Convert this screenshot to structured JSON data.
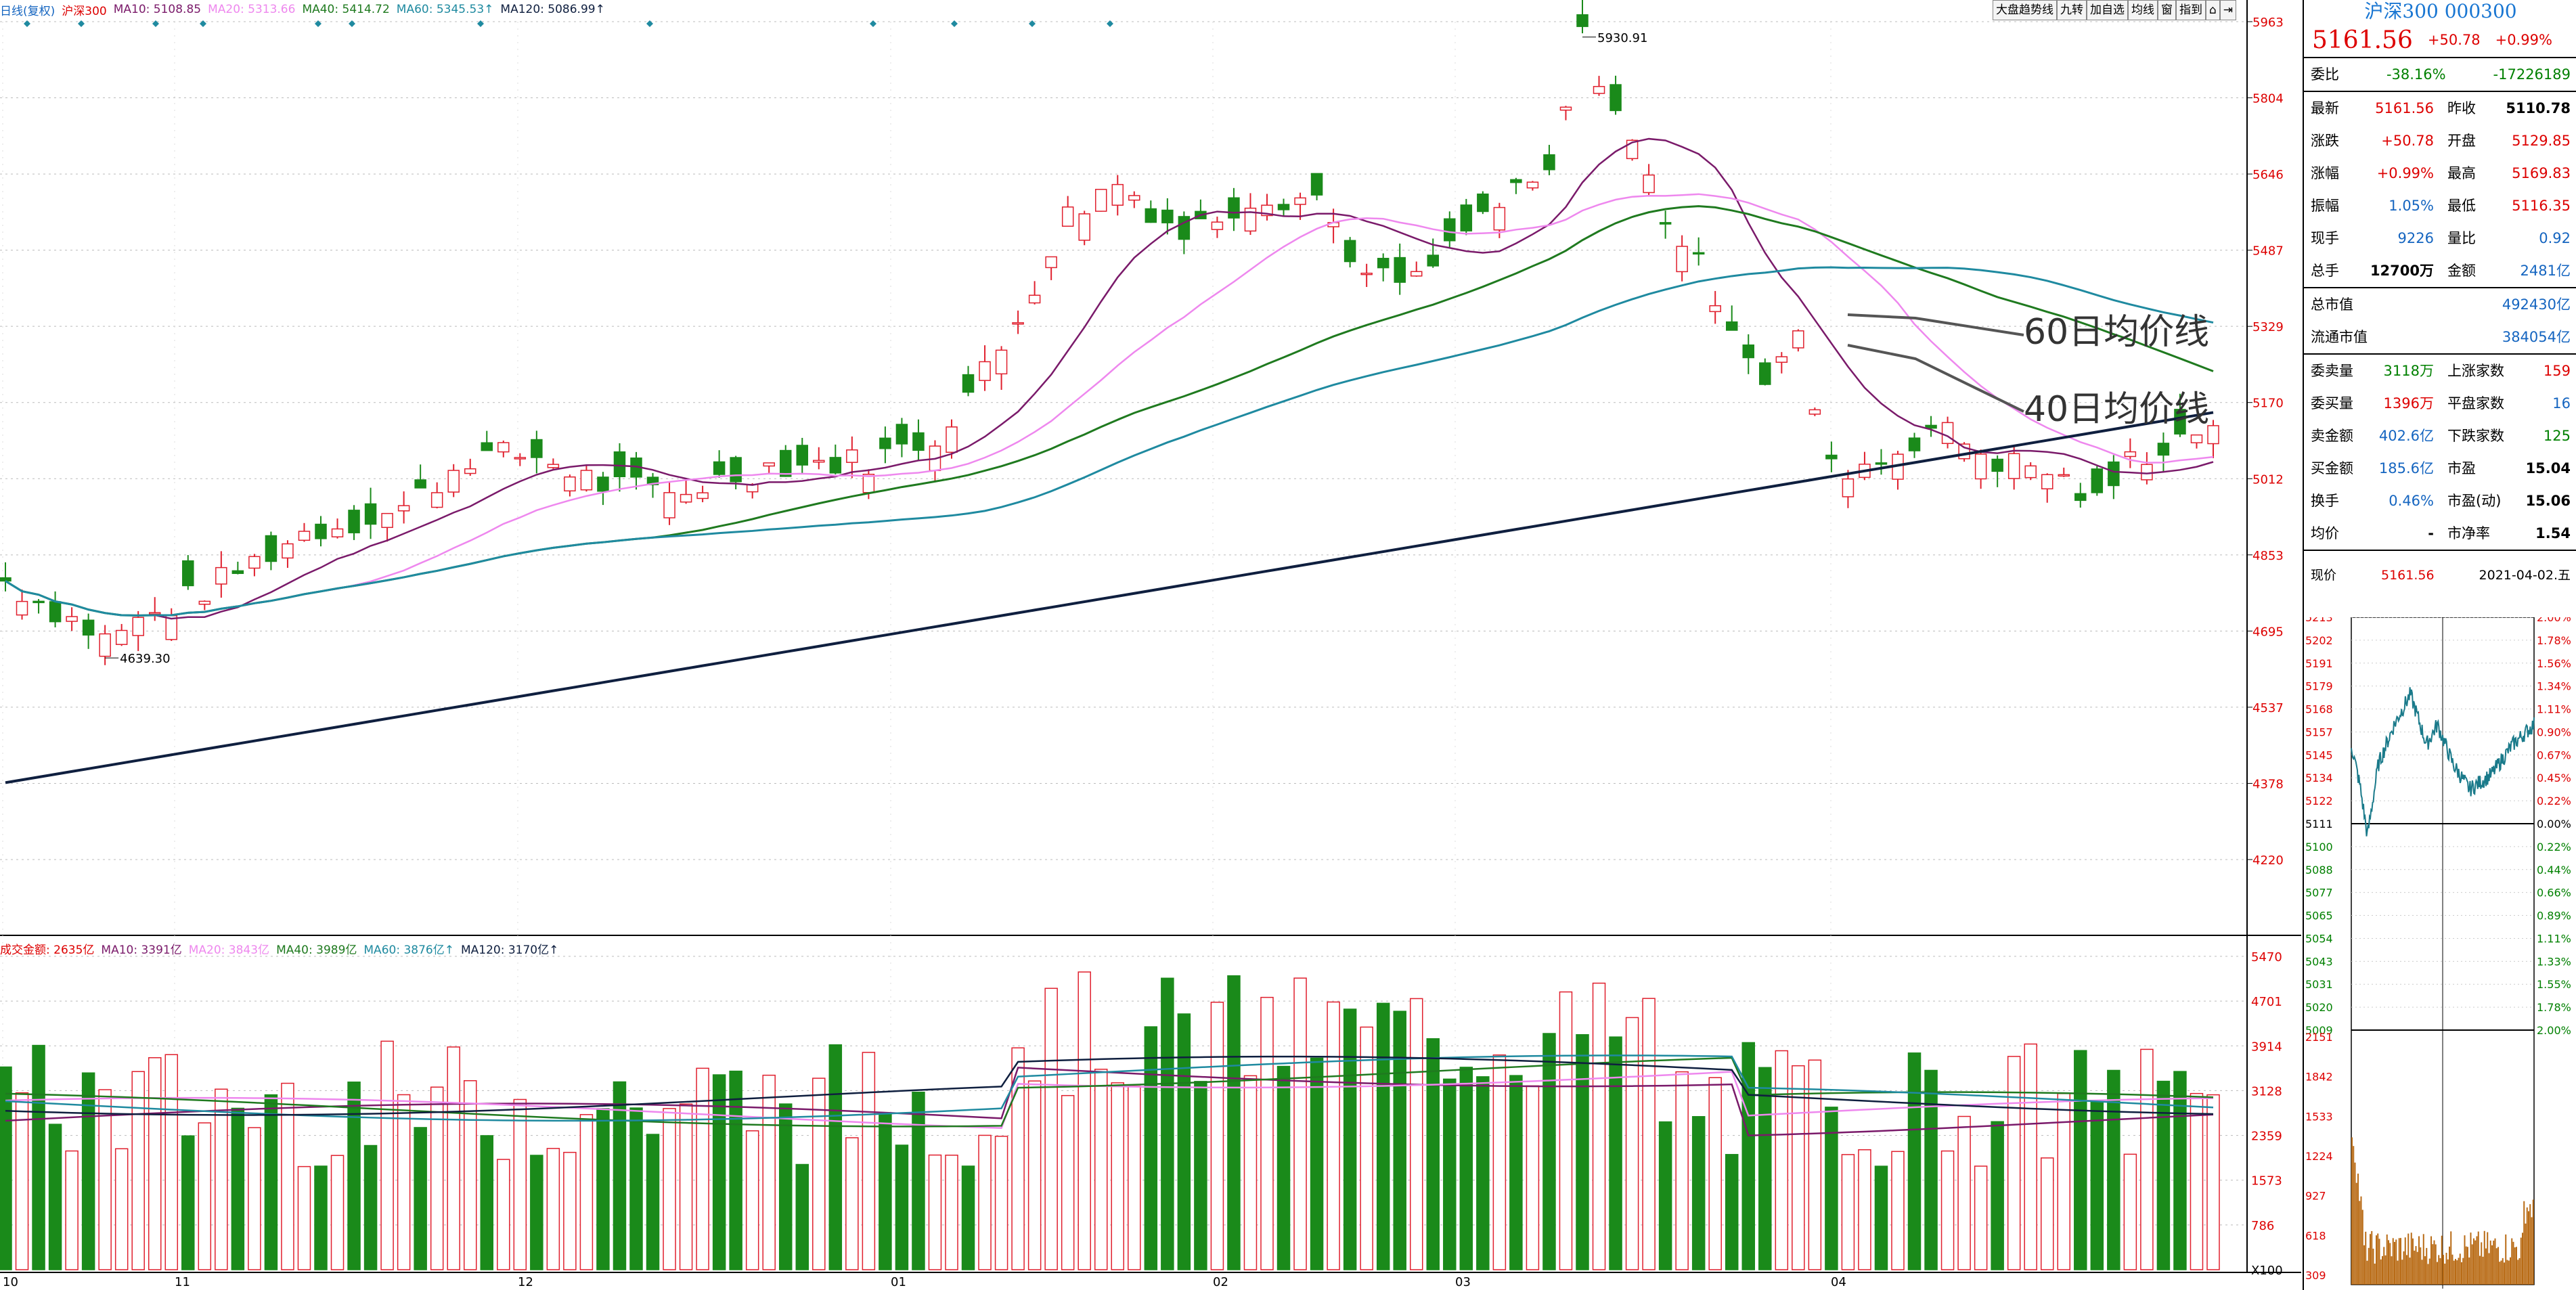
{
  "legend": {
    "chart_name": "日线(复权)",
    "symbol": "沪深300",
    "ma10": "MA10: 5108.85",
    "ma20": "MA20: 5313.66",
    "ma40": "MA40: 5414.72",
    "ma60": "MA60: 5345.53↑",
    "ma120": "MA120: 5086.99↑"
  },
  "vol_legend": {
    "amount": "成交金额: 2635亿",
    "ma10": "MA10: 3391亿",
    "ma20": "MA20: 3843亿",
    "ma40": "MA40: 3989亿",
    "ma60": "MA60: 3876亿↑",
    "ma120": "MA120: 3170亿↑"
  },
  "toolbar": [
    "大盘趋势线",
    "九转",
    "加自选",
    "均线",
    "窗",
    "指到",
    "⌂",
    "⇥"
  ],
  "price_axis": [
    "5963",
    "5804",
    "5646",
    "5487",
    "5329",
    "5170",
    "5012",
    "4853",
    "4695",
    "4537",
    "4378",
    "4220"
  ],
  "vol_axis": [
    "5470",
    "4701",
    "3914",
    "3128",
    "2359",
    "1573",
    "786",
    "X100"
  ],
  "x_axis": [
    "10",
    "11",
    "12",
    "01",
    "02",
    "03",
    "04"
  ],
  "annotations": {
    "high": "5930.91",
    "low": "4639.30",
    "line60": "60日均价线",
    "line40": "40日均价线"
  },
  "panel": {
    "title": "沪深300 000300",
    "price": "5161.56",
    "change": "+50.78",
    "change_pct": "+0.99%",
    "weibi_label": "委比",
    "weibi": "-38.16%",
    "weicha": "-17226189",
    "rows": [
      {
        "l1": "最新",
        "v1": "5161.56",
        "c1": "red",
        "l2": "昨收",
        "v2": "5110.78",
        "c2": "dk"
      },
      {
        "l1": "涨跌",
        "v1": "+50.78",
        "c1": "red",
        "l2": "开盘",
        "v2": "5129.85",
        "c2": "red"
      },
      {
        "l1": "涨幅",
        "v1": "+0.99%",
        "c1": "red",
        "l2": "最高",
        "v2": "5169.83",
        "c2": "red"
      },
      {
        "l1": "振幅",
        "v1": "1.05%",
        "c1": "blue",
        "l2": "最低",
        "v2": "5116.35",
        "c2": "red"
      },
      {
        "l1": "现手",
        "v1": "9226",
        "c1": "blue",
        "l2": "量比",
        "v2": "0.92",
        "c2": "blue"
      },
      {
        "l1": "总手",
        "v1": "12700万",
        "c1": "dk",
        "l2": "金额",
        "v2": "2481亿",
        "c2": "blue"
      }
    ],
    "mkt_rows": [
      {
        "l": "总市值",
        "v": "492430亿"
      },
      {
        "l": "流通市值",
        "v": "384054亿"
      }
    ],
    "rows2": [
      {
        "l1": "委卖量",
        "v1": "3118万",
        "c1": "green",
        "l2": "上涨家数",
        "v2": "159",
        "c2": "red"
      },
      {
        "l1": "委买量",
        "v1": "1396万",
        "c1": "red",
        "l2": "平盘家数",
        "v2": "16",
        "c2": "blue"
      },
      {
        "l1": "卖金额",
        "v1": "402.6亿",
        "c1": "blue",
        "l2": "下跌家数",
        "v2": "125",
        "c2": "green"
      },
      {
        "l1": "买金额",
        "v1": "185.6亿",
        "c1": "blue",
        "l2": "市盈",
        "v2": "15.04",
        "c2": "dk"
      },
      {
        "l1": "换手",
        "v1": "0.46%",
        "c1": "blue",
        "l2": "市盈(动)",
        "v2": "15.06",
        "c2": "dk"
      },
      {
        "l1": "均价",
        "v1": "-",
        "c1": "dk",
        "l2": "市净率",
        "v2": "1.54",
        "c2": "dk"
      }
    ],
    "now_label": "现价",
    "now_price": "5161.56",
    "date": "2021-04-02.五",
    "mini_left": [
      "5213",
      "5202",
      "5191",
      "5179",
      "5168",
      "5157",
      "5145",
      "5134",
      "5122",
      "5111",
      "5100",
      "5088",
      "5077",
      "5065",
      "5054",
      "5043",
      "5031",
      "5020",
      "5009",
      "2151",
      "1842",
      "1533",
      "1224",
      "927",
      "618",
      "309"
    ],
    "mini_right": [
      "2.00%",
      "1.78%",
      "1.56%",
      "1.34%",
      "1.11%",
      "0.90%",
      "0.67%",
      "0.45%",
      "0.22%",
      "0.00%",
      "0.22%",
      "0.44%",
      "0.66%",
      "0.89%",
      "1.11%",
      "1.33%",
      "1.55%",
      "1.78%",
      "2.00%"
    ]
  },
  "colors": {
    "up": "#e0202e",
    "down": "#1a8a1a",
    "ma10": "#7a1a6a",
    "ma20": "#ee88ee",
    "ma40": "#1f7a1f",
    "ma60": "#1f8aa0",
    "ma120": "#0f1f3f"
  }
}
